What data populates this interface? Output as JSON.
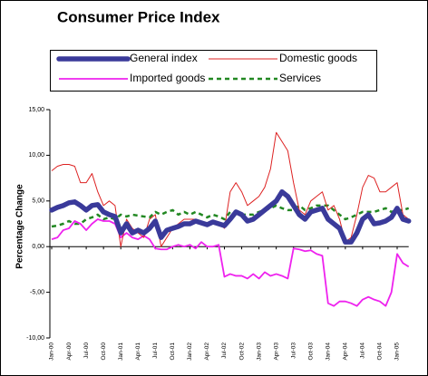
{
  "chart_data": {
    "type": "line",
    "title": "Consumer Price Index",
    "y_label": "Percentage Change",
    "categories": [
      "Jan-00",
      null,
      null,
      "Apr-00",
      null,
      null,
      "Jul-00",
      null,
      null,
      "Oct-00",
      null,
      null,
      "Jan-01",
      null,
      null,
      "Apr-01",
      null,
      null,
      "Jul-01",
      null,
      null,
      "Oct-01",
      null,
      null,
      "Jan-02",
      null,
      null,
      "Apr-02",
      null,
      null,
      "Jul-02",
      null,
      null,
      "Oct-02",
      null,
      null,
      "Jan-03",
      null,
      null,
      "Apr-03",
      null,
      null,
      "Jul-03",
      null,
      null,
      "Oct-03",
      null,
      null,
      "Jan-04",
      null,
      null,
      "Apr-04",
      null,
      null,
      "Jul-04",
      null,
      null,
      "Oct-04",
      null,
      null,
      "Jan-05",
      null,
      null
    ],
    "series": [
      {
        "name": "General index",
        "color": "#3a3a9a",
        "values": [
          4.0,
          4.3,
          4.5,
          4.8,
          4.9,
          4.5,
          4.0,
          4.5,
          4.6,
          3.8,
          3.5,
          3.3,
          1.5,
          2.5,
          1.5,
          1.8,
          1.5,
          2.0,
          2.8,
          1.0,
          1.8,
          2.0,
          2.2,
          2.5,
          2.5,
          2.8,
          2.6,
          2.4,
          2.7,
          2.5,
          2.3,
          3.0,
          3.8,
          3.5,
          2.8,
          3.0,
          3.5,
          4.0,
          4.5,
          5.0,
          6.0,
          5.5,
          4.5,
          3.5,
          3.0,
          3.8,
          4.0,
          4.2,
          3.0,
          2.5,
          2.0,
          0.5,
          0.5,
          1.5,
          3.0,
          3.5,
          2.5,
          2.6,
          2.8,
          3.2,
          4.2,
          3.0,
          2.8
        ]
      },
      {
        "name": "Domestic goods",
        "color": "#dd2222",
        "values": [
          8.3,
          8.8,
          9.0,
          9.0,
          8.8,
          7.0,
          7.0,
          8.0,
          6.0,
          4.5,
          5.0,
          4.5,
          0.0,
          3.0,
          2.0,
          1.5,
          1.0,
          3.0,
          3.5,
          0.0,
          1.0,
          2.0,
          2.5,
          3.0,
          3.0,
          3.0,
          2.8,
          2.5,
          2.8,
          2.6,
          2.0,
          6.0,
          7.0,
          6.0,
          4.5,
          5.0,
          5.5,
          6.5,
          8.5,
          12.5,
          11.5,
          10.5,
          7.0,
          4.0,
          3.5,
          5.0,
          5.5,
          6.0,
          4.0,
          4.5,
          3.0,
          0.5,
          1.0,
          3.5,
          6.5,
          7.8,
          7.5,
          6.0,
          6.0,
          6.5,
          7.0,
          3.5,
          3.0
        ]
      },
      {
        "name": "Imported goods",
        "color": "#ee22ee",
        "values": [
          0.8,
          1.0,
          1.8,
          2.0,
          2.8,
          2.5,
          1.8,
          2.5,
          3.0,
          2.8,
          2.8,
          2.5,
          1.0,
          1.5,
          1.0,
          0.8,
          1.2,
          0.8,
          -0.2,
          -0.3,
          -0.3,
          0.0,
          0.2,
          0.0,
          0.2,
          -0.2,
          0.5,
          0.0,
          0.0,
          0.2,
          -3.3,
          -3.0,
          -3.2,
          -3.2,
          -3.5,
          -3.0,
          -3.5,
          -2.8,
          -3.2,
          -3.0,
          -3.2,
          -3.5,
          -0.2,
          -0.3,
          -0.5,
          -0.4,
          -0.8,
          -1.0,
          -6.2,
          -6.5,
          -6.0,
          -6.0,
          -6.2,
          -6.5,
          -5.8,
          -5.5,
          -5.8,
          -6.0,
          -6.5,
          -5.0,
          -0.8,
          -1.8,
          -2.2
        ]
      },
      {
        "name": "Services",
        "color": "#228822",
        "values": [
          2.2,
          2.3,
          2.5,
          2.8,
          2.5,
          2.5,
          3.0,
          3.2,
          3.5,
          3.0,
          3.2,
          3.0,
          3.5,
          3.3,
          3.5,
          3.4,
          3.3,
          3.2,
          3.8,
          3.5,
          3.8,
          4.0,
          3.5,
          3.8,
          3.5,
          3.8,
          3.5,
          3.2,
          3.5,
          3.3,
          3.0,
          3.8,
          3.8,
          3.5,
          3.5,
          3.5,
          3.8,
          4.0,
          4.2,
          4.5,
          4.2,
          4.0,
          4.0,
          4.5,
          4.0,
          4.2,
          4.5,
          4.5,
          4.5,
          4.0,
          3.5,
          3.0,
          3.2,
          3.5,
          3.8,
          3.8,
          3.8,
          4.0,
          4.2,
          3.8,
          4.0,
          4.0,
          4.2
        ]
      }
    ],
    "ylim": [
      -10,
      15
    ],
    "yticks": [
      {
        "value": -10,
        "label": "-10,00"
      },
      {
        "value": -5,
        "label": "-5,00"
      },
      {
        "value": 0,
        "label": "0,00"
      },
      {
        "value": 5,
        "label": "5,00"
      },
      {
        "value": 10,
        "label": "10,00"
      },
      {
        "value": 15,
        "label": "15,00"
      }
    ],
    "grid": false
  }
}
